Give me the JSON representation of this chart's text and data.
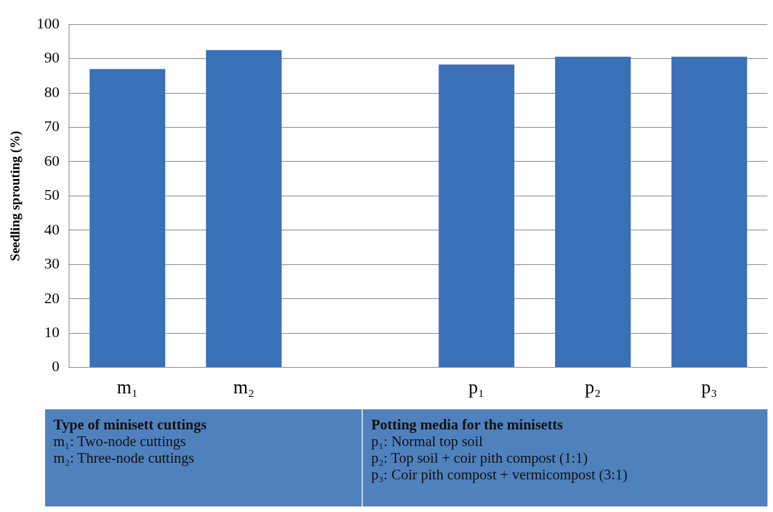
{
  "chart_data": {
    "type": "bar",
    "ylabel": "Seedling sprouting (%)",
    "categories": [
      "m₁",
      "m₂",
      null,
      "p₁",
      "p₂",
      "p₃"
    ],
    "values": [
      87.0,
      92.5,
      null,
      88.3,
      90.6,
      90.6
    ],
    "color": "#3a70b8",
    "ylim": [
      0,
      100
    ],
    "yticks": [
      0,
      10,
      20,
      30,
      40,
      50,
      60,
      70,
      80,
      90,
      100
    ],
    "grid": "y",
    "annotations": [
      "Type of minisett cuttings",
      "m₁: Two-node cuttings",
      "m₂: Three-node cuttings",
      "Potting media for the minisetts",
      "p₁: Normal top soil",
      "p₂: Top soil + coir pith compost (1:1)",
      "p₃: Coir pith compost + vermicompost (3:1)"
    ]
  }
}
